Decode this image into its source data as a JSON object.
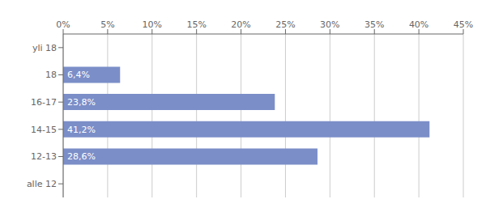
{
  "chart_data": {
    "type": "bar",
    "orientation": "horizontal",
    "categories": [
      "alle 12",
      "12-13",
      "14-15",
      "16-17",
      "18",
      "yli 18"
    ],
    "values": [
      0.0,
      28.6,
      41.2,
      23.8,
      6.4,
      0.0
    ],
    "value_labels": [
      null,
      "28,6%",
      "41,2%",
      "23,8%",
      "6,4%",
      null
    ],
    "data_labels": true,
    "color": "#7b8ec8",
    "xlim": [
      0,
      45
    ],
    "xticks": [
      {
        "value": 0,
        "label": "0%"
      },
      {
        "value": 5,
        "label": "5%"
      },
      {
        "value": 10,
        "label": "10%"
      },
      {
        "value": 15,
        "label": "15%"
      },
      {
        "value": 20,
        "label": "20%"
      },
      {
        "value": 25,
        "label": "25%"
      },
      {
        "value": 30,
        "label": "30%"
      },
      {
        "value": 35,
        "label": "35%"
      },
      {
        "value": 40,
        "label": "40%"
      },
      {
        "value": 45,
        "label": "45%"
      }
    ],
    "grid": true
  }
}
